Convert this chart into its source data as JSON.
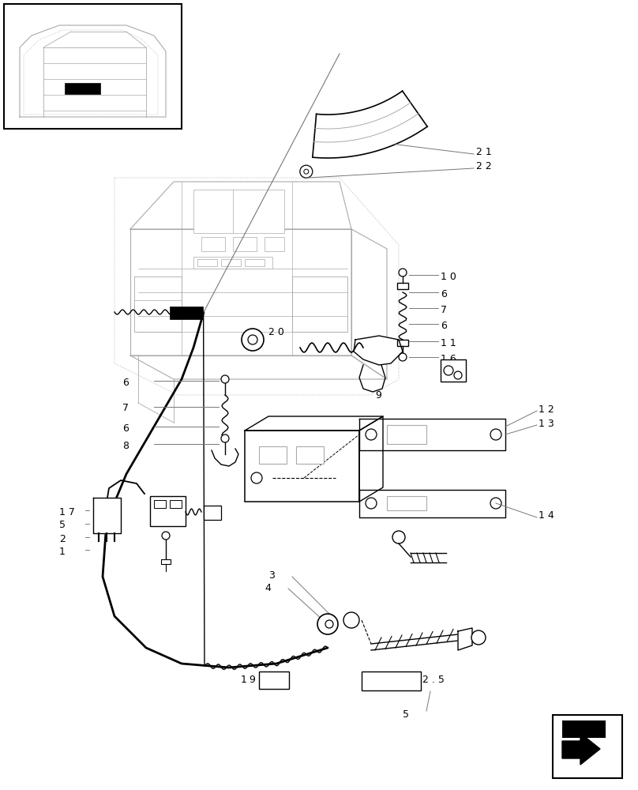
{
  "bg_color": "#ffffff",
  "line_color": "#000000",
  "gray_color": "#777777",
  "light_gray": "#aaaaaa",
  "fig_width": 8.08,
  "fig_height": 10.0
}
